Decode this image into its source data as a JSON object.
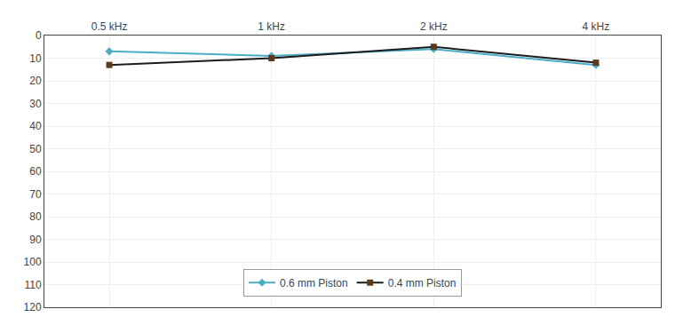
{
  "chart_data": {
    "type": "line",
    "categories": [
      "0.5 kHz",
      "1 kHz",
      "2 kHz",
      "4 kHz"
    ],
    "series": [
      {
        "name": "0.6 mm Piston",
        "color": "#4BACC6",
        "marker": "diamond",
        "values": [
          7,
          9,
          6,
          13
        ]
      },
      {
        "name": "0.4 mm Piston",
        "color": "#1C1C1C",
        "colors": [
          "#5C3A1E",
          "#5C3A1E",
          "#5C3A1E",
          "#5C3A1E"
        ],
        "marker": "square",
        "values": [
          13,
          10,
          5,
          12
        ]
      }
    ],
    "ylim": [
      120,
      0
    ],
    "yticks": [
      0,
      10,
      20,
      30,
      40,
      50,
      60,
      70,
      80,
      90,
      100,
      110,
      120
    ],
    "grid": true,
    "legend": "lower center"
  }
}
